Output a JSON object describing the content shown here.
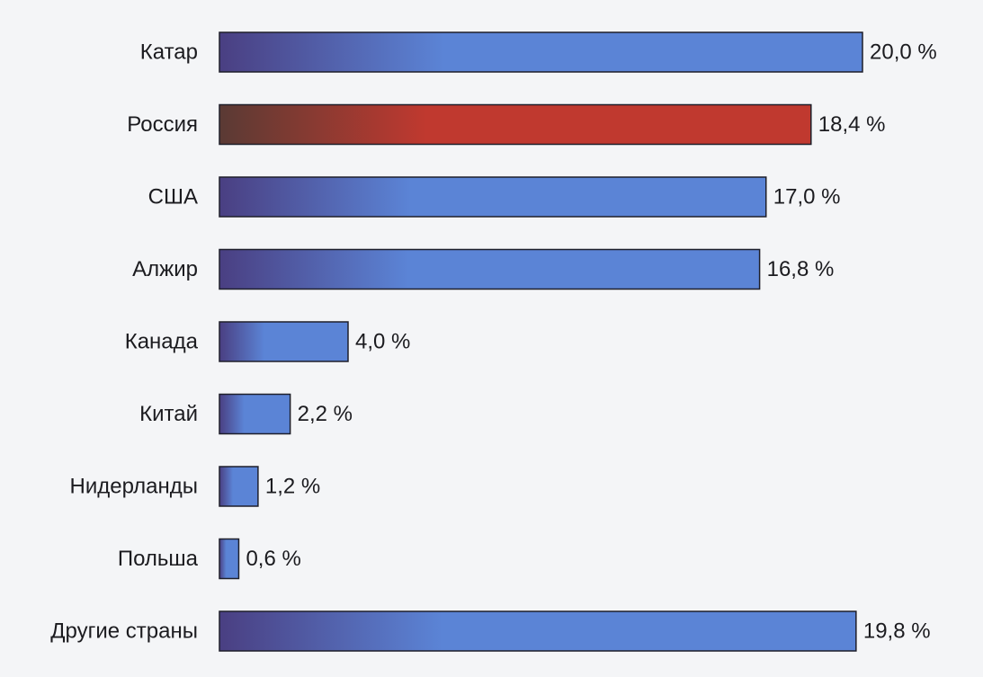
{
  "chart_data": {
    "type": "bar",
    "orientation": "horizontal",
    "categories": [
      "Катар",
      "Россия",
      "США",
      "Алжир",
      "Канада",
      "Китай",
      "Нидерланды",
      "Польша",
      "Другие страны"
    ],
    "values": [
      20.0,
      18.4,
      17.0,
      16.8,
      4.0,
      2.2,
      1.2,
      0.6,
      19.8
    ],
    "value_labels": [
      "20,0 %",
      "18,4 %",
      "17,0 %",
      "16,8 %",
      "4,0 %",
      "2,2 %",
      "1,2 %",
      "0,6 %",
      "19,8 %"
    ],
    "highlighted_category": "Россия",
    "title": "",
    "xlabel": "",
    "ylabel": "",
    "xlim": [
      0,
      20
    ],
    "grid": false,
    "legend": "none",
    "colors": {
      "bar_dark": "#4a3f82",
      "bar_light": "#5b84d6",
      "highlight_dark": "#5a3a34",
      "highlight_light": "#c0392f",
      "bar_border": "#1e1f2a",
      "text": "#1b1b1f",
      "background": "#f4f5f7"
    }
  }
}
